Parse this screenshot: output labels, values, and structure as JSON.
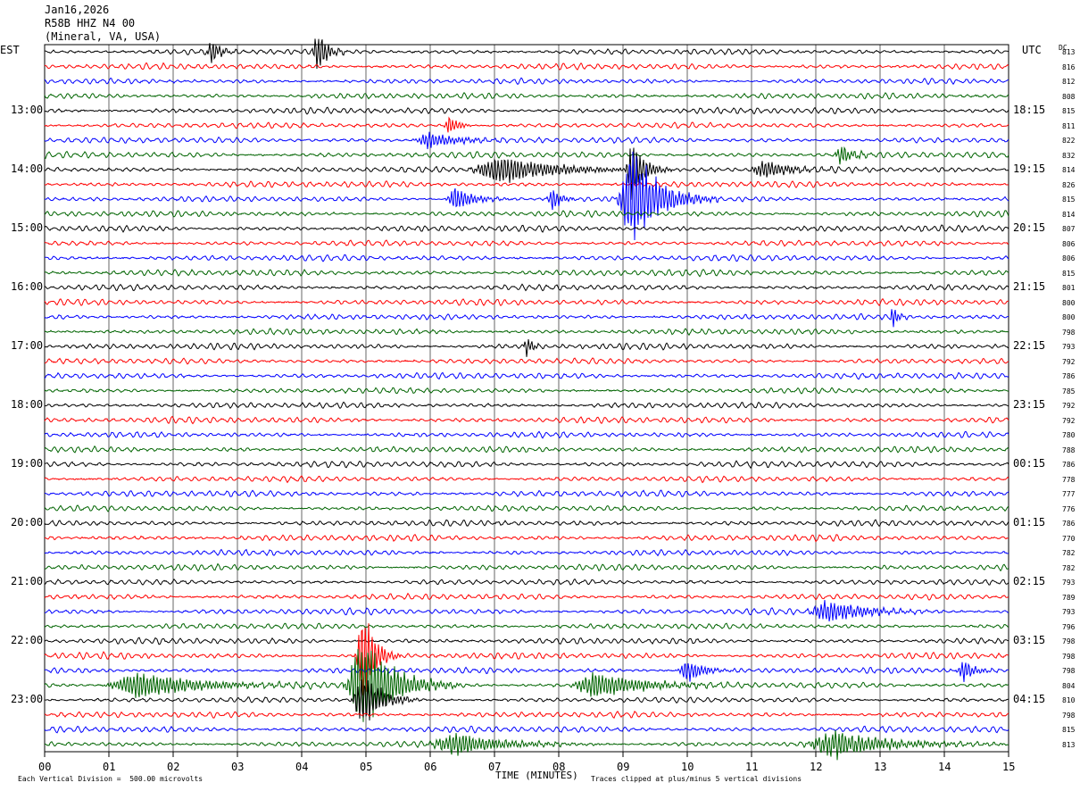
{
  "header": {
    "date": "Jan16,2026",
    "station": "R58B HHZ N4 00",
    "location": "(Mineral, VA, USA)"
  },
  "left_tz": "EST",
  "right_tz": "UTC",
  "dc_header": "DC",
  "footer": {
    "scale": "Each Vertical Division =  500.00 microvolts",
    "xlabel": "TIME (MINUTES)",
    "clip_note": "Traces clipped at plus/minus 5 vertical divisions"
  },
  "colors": {
    "trace_cycle": [
      "#000000",
      "#ff0000",
      "#0000ff",
      "#006400"
    ],
    "grid": "#000000",
    "background": "#ffffff"
  },
  "chart_data": {
    "type": "line",
    "title": "R58B HHZ N4 00 (Mineral, VA, USA)",
    "xlabel": "TIME (MINUTES)",
    "xlim": [
      0,
      15
    ],
    "x_ticks": [
      "00",
      "01",
      "02",
      "03",
      "04",
      "05",
      "06",
      "07",
      "08",
      "09",
      "10",
      "11",
      "12",
      "13",
      "14",
      "15"
    ],
    "row_count": 48,
    "minutes_per_row": 15,
    "left_hour_labels": [
      "13:00",
      "14:00",
      "15:00",
      "16:00",
      "17:00",
      "18:00",
      "19:00",
      "20:00",
      "21:00",
      "22:00",
      "23:00"
    ],
    "right_hour_labels": [
      "18:15",
      "19:15",
      "20:15",
      "21:15",
      "22:15",
      "23:15",
      "00:15",
      "01:15",
      "02:15",
      "03:15",
      "04:15"
    ],
    "dc_offsets": [
      813,
      816,
      812,
      808,
      815,
      811,
      822,
      832,
      814,
      826,
      815,
      814,
      807,
      806,
      806,
      815,
      801,
      800,
      800,
      798,
      793,
      792,
      786,
      785,
      792,
      792,
      780,
      788,
      786,
      778,
      777,
      776,
      786,
      770,
      782,
      782,
      793,
      789,
      793,
      796,
      798,
      798,
      798,
      804,
      810,
      798,
      815,
      813
    ],
    "events": [
      {
        "row": 0,
        "minute": 2.6,
        "amplitude": 1.3,
        "width_min": 0.15
      },
      {
        "row": 0,
        "minute": 4.25,
        "amplitude": 2.4,
        "width_min": 0.15
      },
      {
        "row": 5,
        "minute": 6.3,
        "amplitude": 1.0,
        "width_min": 0.15
      },
      {
        "row": 6,
        "minute": 6.0,
        "amplitude": 0.8,
        "width_min": 0.5
      },
      {
        "row": 7,
        "minute": 12.4,
        "amplitude": 1.0,
        "width_min": 0.2
      },
      {
        "row": 8,
        "minute": 7.1,
        "amplitude": 1.4,
        "width_min": 0.9
      },
      {
        "row": 8,
        "minute": 9.15,
        "amplitude": 3.0,
        "width_min": 0.2
      },
      {
        "row": 8,
        "minute": 11.2,
        "amplitude": 1.0,
        "width_min": 0.4
      },
      {
        "row": 10,
        "minute": 6.4,
        "amplitude": 1.2,
        "width_min": 0.3
      },
      {
        "row": 10,
        "minute": 7.9,
        "amplitude": 1.2,
        "width_min": 0.15
      },
      {
        "row": 10,
        "minute": 9.15,
        "amplitude": 5.0,
        "width_min": 0.45
      },
      {
        "row": 18,
        "minute": 13.2,
        "amplitude": 1.1,
        "width_min": 0.1
      },
      {
        "row": 20,
        "minute": 7.5,
        "amplitude": 1.1,
        "width_min": 0.1
      },
      {
        "row": 38,
        "minute": 12.2,
        "amplitude": 1.2,
        "width_min": 0.6
      },
      {
        "row": 41,
        "minute": 4.95,
        "amplitude": 5.0,
        "width_min": 0.2
      },
      {
        "row": 42,
        "minute": 10.0,
        "amplitude": 1.1,
        "width_min": 0.3
      },
      {
        "row": 42,
        "minute": 14.3,
        "amplitude": 1.1,
        "width_min": 0.2
      },
      {
        "row": 43,
        "minute": 1.5,
        "amplitude": 1.3,
        "width_min": 1.0
      },
      {
        "row": 43,
        "minute": 4.95,
        "amplitude": 5.0,
        "width_min": 0.5
      },
      {
        "row": 43,
        "minute": 8.6,
        "amplitude": 1.3,
        "width_min": 0.8
      },
      {
        "row": 44,
        "minute": 4.95,
        "amplitude": 3.0,
        "width_min": 0.3
      },
      {
        "row": 47,
        "minute": 6.4,
        "amplitude": 1.1,
        "width_min": 0.8
      },
      {
        "row": 47,
        "minute": 12.3,
        "amplitude": 1.3,
        "width_min": 0.9
      }
    ]
  }
}
